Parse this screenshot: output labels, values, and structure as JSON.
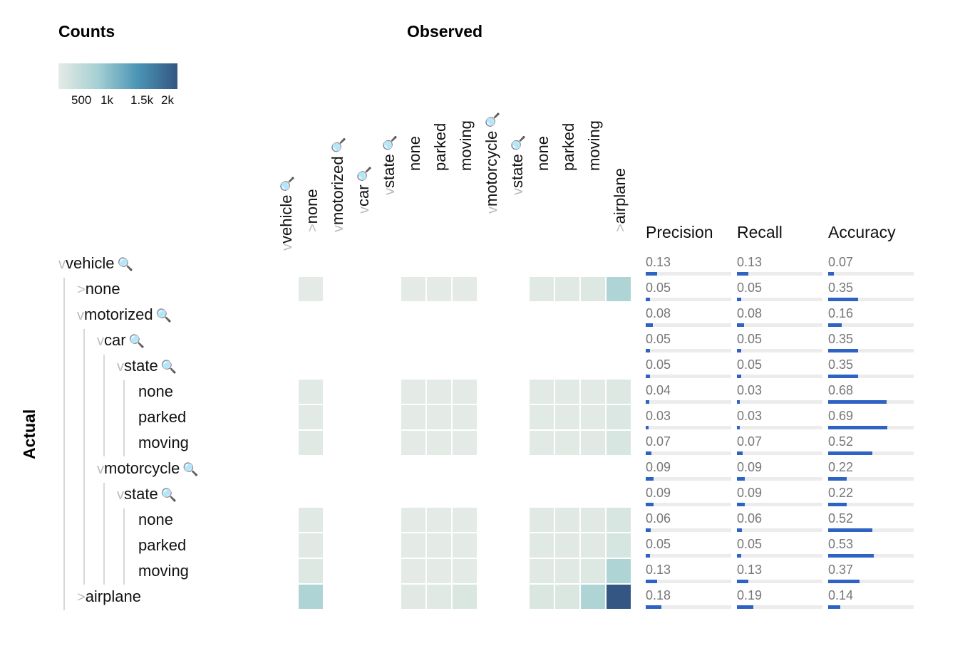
{
  "titles": {
    "counts": "Counts",
    "observed": "Observed",
    "actual": "Actual"
  },
  "legend": {
    "ticks": [
      "500",
      "1k",
      "1.5k",
      "2k"
    ],
    "color_min": "#e6ebe6",
    "color_max": "#335782"
  },
  "icons": {
    "expanded": "chevron-down",
    "collapsed": "chevron-right",
    "zoom": "magnifier"
  },
  "chevrons": {
    "expanded": "v",
    "collapsed": ">"
  },
  "zoom_glyph": "🔍",
  "rows": [
    {
      "label": "vehicle",
      "state": "expanded",
      "zoom": true
    },
    {
      "label": "none",
      "state": "collapsed",
      "zoom": false
    },
    {
      "label": "motorized",
      "state": "expanded",
      "zoom": true
    },
    {
      "label": "car",
      "state": "expanded",
      "zoom": true
    },
    {
      "label": "state",
      "state": "expanded",
      "zoom": true
    },
    {
      "label": "none",
      "state": "leaf",
      "zoom": false
    },
    {
      "label": "parked",
      "state": "leaf",
      "zoom": false
    },
    {
      "label": "moving",
      "state": "leaf",
      "zoom": false
    },
    {
      "label": "motorcycle",
      "state": "expanded",
      "zoom": true
    },
    {
      "label": "state",
      "state": "expanded",
      "zoom": true
    },
    {
      "label": "none",
      "state": "leaf",
      "zoom": false
    },
    {
      "label": "parked",
      "state": "leaf",
      "zoom": false
    },
    {
      "label": "moving",
      "state": "leaf",
      "zoom": false
    },
    {
      "label": "airplane",
      "state": "collapsed",
      "zoom": false
    }
  ],
  "columns": [
    {
      "label": "vehicle",
      "state": "expanded",
      "zoom": true
    },
    {
      "label": "none",
      "state": "collapsed",
      "zoom": false
    },
    {
      "label": "motorized",
      "state": "expanded",
      "zoom": true
    },
    {
      "label": "car",
      "state": "expanded",
      "zoom": true
    },
    {
      "label": "state",
      "state": "expanded",
      "zoom": true
    },
    {
      "label": "none",
      "state": "leaf",
      "zoom": false
    },
    {
      "label": "parked",
      "state": "leaf",
      "zoom": false
    },
    {
      "label": "moving",
      "state": "leaf",
      "zoom": false
    },
    {
      "label": "motorcycle",
      "state": "expanded",
      "zoom": true
    },
    {
      "label": "state",
      "state": "expanded",
      "zoom": true
    },
    {
      "label": "none",
      "state": "leaf",
      "zoom": false
    },
    {
      "label": "parked",
      "state": "leaf",
      "zoom": false
    },
    {
      "label": "moving",
      "state": "leaf",
      "zoom": false
    },
    {
      "label": "airplane",
      "state": "collapsed",
      "zoom": false
    }
  ],
  "metrics": {
    "headers": [
      "Precision",
      "Recall",
      "Accuracy"
    ],
    "precision": [
      "0.13",
      "0.05",
      "0.08",
      "0.05",
      "0.05",
      "0.04",
      "0.03",
      "0.07",
      "0.09",
      "0.09",
      "0.06",
      "0.05",
      "0.13",
      "0.18"
    ],
    "recall": [
      "0.13",
      "0.05",
      "0.08",
      "0.05",
      "0.05",
      "0.03",
      "0.03",
      "0.07",
      "0.09",
      "0.09",
      "0.06",
      "0.05",
      "0.13",
      "0.19"
    ],
    "accuracy": [
      "0.07",
      "0.35",
      "0.16",
      "0.35",
      "0.35",
      "0.68",
      "0.69",
      "0.52",
      "0.22",
      "0.22",
      "0.52",
      "0.53",
      "0.37",
      "0.14"
    ]
  },
  "chart_data": {
    "type": "heatmap",
    "title": "Counts",
    "xlabel": "Observed",
    "ylabel": "Actual",
    "x": [
      "none",
      "none",
      "parked",
      "moving",
      "none",
      "parked",
      "moving",
      "airplane"
    ],
    "y": [
      "none",
      "none",
      "parked",
      "moving",
      "none",
      "parked",
      "moving",
      "airplane"
    ],
    "values": [
      [
        80,
        60,
        60,
        80,
        150,
        150,
        250,
        1000
      ],
      [
        120,
        60,
        60,
        60,
        120,
        120,
        120,
        250
      ],
      [
        120,
        60,
        60,
        60,
        120,
        120,
        120,
        350
      ],
      [
        150,
        60,
        60,
        60,
        120,
        120,
        180,
        500
      ],
      [
        150,
        60,
        60,
        60,
        150,
        150,
        180,
        500
      ],
      [
        150,
        60,
        60,
        60,
        150,
        150,
        180,
        550
      ],
      [
        250,
        60,
        60,
        60,
        180,
        180,
        300,
        1000
      ],
      [
        1000,
        180,
        180,
        400,
        400,
        400,
        1000,
        2200
      ]
    ],
    "color_range": [
      0,
      2200
    ]
  }
}
